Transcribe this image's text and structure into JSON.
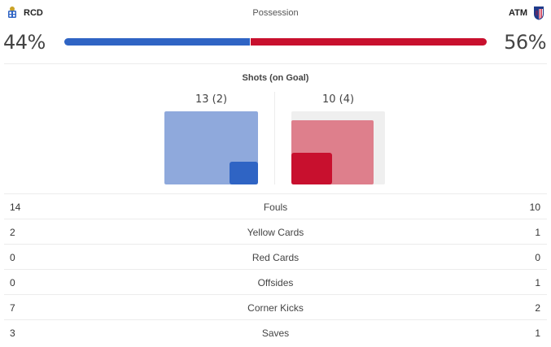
{
  "header": {
    "title": "Possession",
    "home": {
      "abbr": "RCD",
      "crest_icon": "deportivo-crest-icon"
    },
    "away": {
      "abbr": "ATM",
      "crest_icon": "atletico-madrid-crest-icon"
    }
  },
  "possession": {
    "home_pct": "44%",
    "away_pct": "56%",
    "home_value": 44,
    "away_value": 56
  },
  "shots": {
    "title": "Shots (on Goal)",
    "home_label": "13 (2)",
    "away_label": "10 (4)",
    "home_total": 13,
    "home_on_goal": 2,
    "away_total": 10,
    "away_on_goal": 4
  },
  "stats": [
    {
      "label": "Fouls",
      "home": "14",
      "away": "10"
    },
    {
      "label": "Yellow Cards",
      "home": "2",
      "away": "1"
    },
    {
      "label": "Red Cards",
      "home": "0",
      "away": "0"
    },
    {
      "label": "Offsides",
      "home": "0",
      "away": "1"
    },
    {
      "label": "Corner Kicks",
      "home": "7",
      "away": "2"
    },
    {
      "label": "Saves",
      "home": "3",
      "away": "1"
    }
  ],
  "colors": {
    "home_primary": "#2f64c4",
    "home_light": "#8fa9dc",
    "away_primary": "#c8102e",
    "away_light": "#de7f8c",
    "box_bg": "#efefef"
  }
}
